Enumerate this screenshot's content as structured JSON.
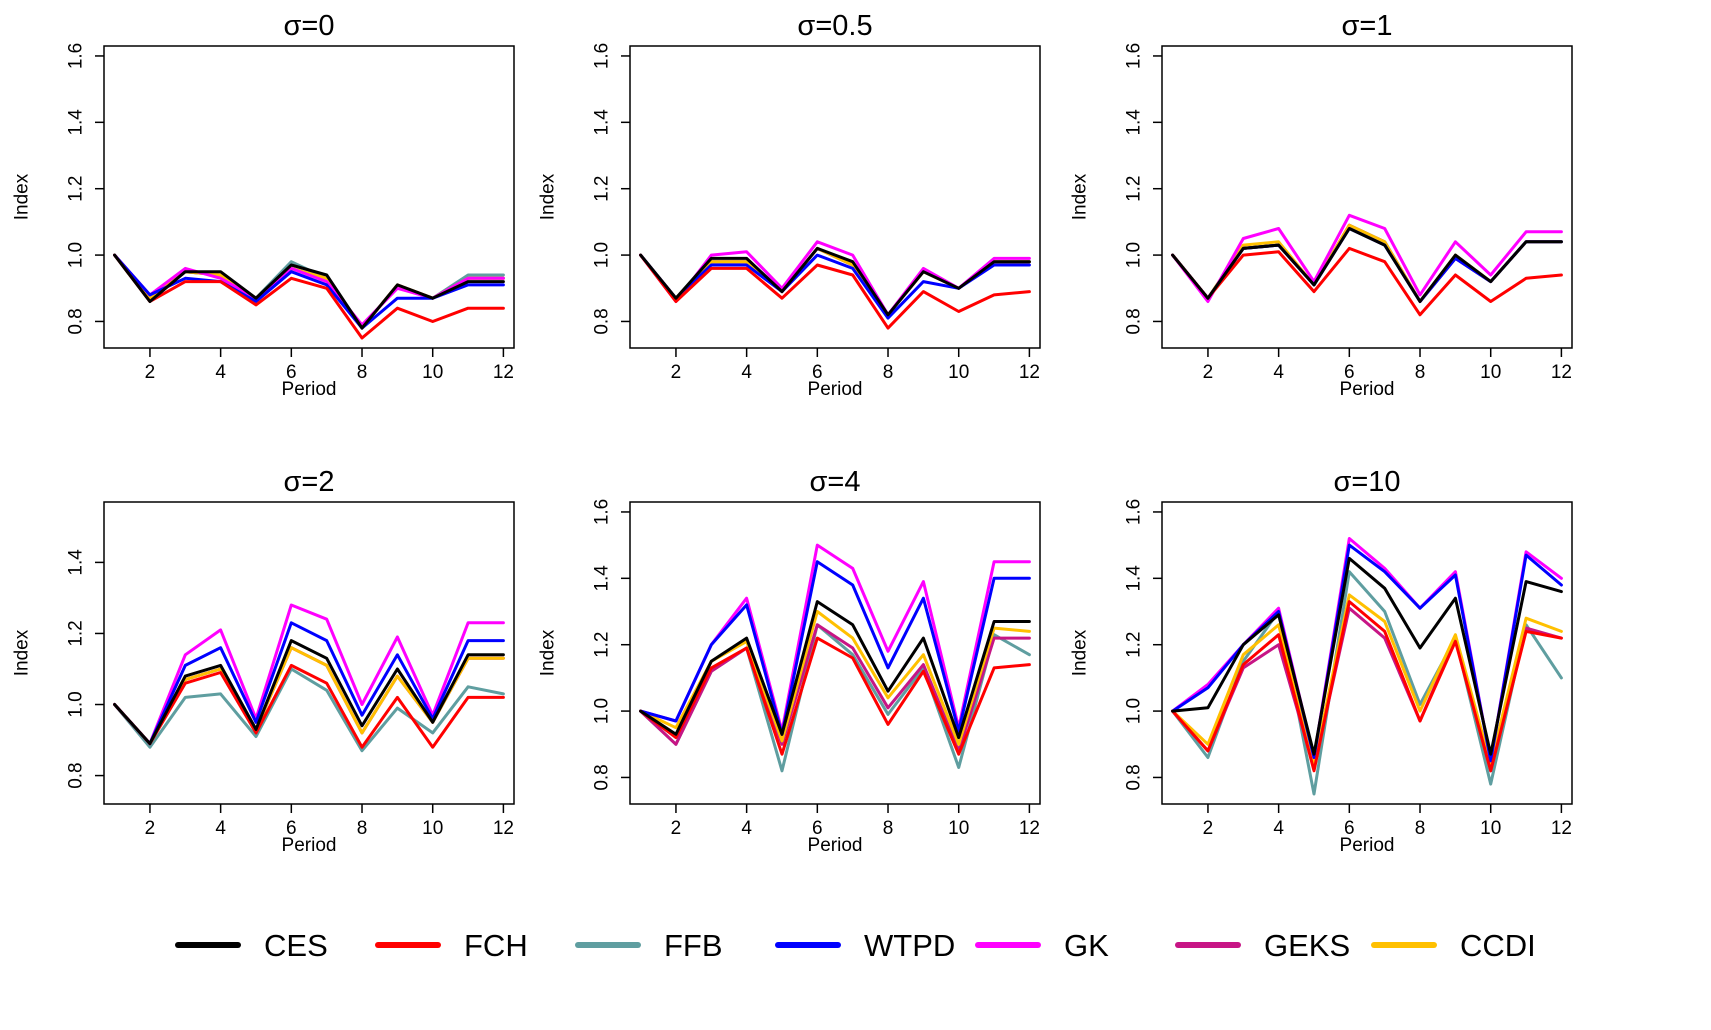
{
  "chart_data": [
    {
      "type": "line",
      "title": "σ=0",
      "xlabel": "Period",
      "ylabel": "Index",
      "x": [
        1,
        2,
        3,
        4,
        5,
        6,
        7,
        8,
        9,
        10,
        11,
        12
      ],
      "yticks": [
        0.8,
        1.0,
        1.2,
        1.4,
        1.6
      ],
      "ytick_labels": [
        "0.8",
        "1.0",
        "1.2",
        "1.4",
        "1.6"
      ],
      "xticks": [
        2,
        4,
        6,
        8,
        10,
        12
      ],
      "xtick_labels": [
        "2",
        "4",
        "6",
        "8",
        "10",
        "12"
      ],
      "xlim": [
        0.7,
        12.3
      ],
      "ylim": [
        0.72,
        1.63
      ],
      "grid": false,
      "series": [
        {
          "name": "FFB",
          "values": [
            1.0,
            0.87,
            0.95,
            0.94,
            0.87,
            0.98,
            0.93,
            0.78,
            0.91,
            0.87,
            0.94,
            0.94
          ]
        },
        {
          "name": "GEKS",
          "values": [
            1.0,
            0.87,
            0.95,
            0.94,
            0.87,
            0.96,
            0.93,
            0.78,
            0.91,
            0.87,
            0.93,
            0.93
          ]
        },
        {
          "name": "CCDI",
          "values": [
            1.0,
            0.87,
            0.95,
            0.94,
            0.87,
            0.96,
            0.93,
            0.78,
            0.91,
            0.87,
            0.93,
            0.93
          ]
        },
        {
          "name": "GK",
          "values": [
            1.0,
            0.88,
            0.96,
            0.93,
            0.87,
            0.96,
            0.92,
            0.79,
            0.9,
            0.87,
            0.93,
            0.93
          ]
        },
        {
          "name": "WTPD",
          "values": [
            1.0,
            0.88,
            0.93,
            0.92,
            0.86,
            0.95,
            0.91,
            0.78,
            0.87,
            0.87,
            0.91,
            0.91
          ]
        },
        {
          "name": "FCH",
          "values": [
            1.0,
            0.86,
            0.92,
            0.92,
            0.85,
            0.93,
            0.9,
            0.75,
            0.84,
            0.8,
            0.84,
            0.84
          ]
        },
        {
          "name": "CES",
          "values": [
            1.0,
            0.86,
            0.95,
            0.95,
            0.87,
            0.97,
            0.94,
            0.78,
            0.91,
            0.87,
            0.92,
            0.92
          ]
        }
      ]
    },
    {
      "type": "line",
      "title": "σ=0.5",
      "xlabel": "Period",
      "ylabel": "Index",
      "x": [
        1,
        2,
        3,
        4,
        5,
        6,
        7,
        8,
        9,
        10,
        11,
        12
      ],
      "yticks": [
        0.8,
        1.0,
        1.2,
        1.4,
        1.6
      ],
      "ytick_labels": [
        "0.8",
        "1.0",
        "1.2",
        "1.4",
        "1.6"
      ],
      "xticks": [
        2,
        4,
        6,
        8,
        10,
        12
      ],
      "xtick_labels": [
        "2",
        "4",
        "6",
        "8",
        "10",
        "12"
      ],
      "xlim": [
        0.7,
        12.3
      ],
      "ylim": [
        0.72,
        1.63
      ],
      "grid": false,
      "series": [
        {
          "name": "FFB",
          "values": [
            1.0,
            0.87,
            0.98,
            0.98,
            0.89,
            1.02,
            0.97,
            0.82,
            0.95,
            0.9,
            0.98,
            0.98
          ]
        },
        {
          "name": "GEKS",
          "values": [
            1.0,
            0.87,
            0.98,
            0.98,
            0.89,
            1.02,
            0.97,
            0.82,
            0.95,
            0.9,
            0.98,
            0.98
          ]
        },
        {
          "name": "CCDI",
          "values": [
            1.0,
            0.87,
            0.98,
            0.98,
            0.89,
            1.02,
            0.97,
            0.82,
            0.95,
            0.9,
            0.98,
            0.98
          ]
        },
        {
          "name": "GK",
          "values": [
            1.0,
            0.86,
            1.0,
            1.01,
            0.9,
            1.04,
            1.0,
            0.82,
            0.96,
            0.9,
            0.99,
            0.99
          ]
        },
        {
          "name": "WTPD",
          "values": [
            1.0,
            0.87,
            0.97,
            0.97,
            0.89,
            1.0,
            0.96,
            0.81,
            0.92,
            0.9,
            0.97,
            0.97
          ]
        },
        {
          "name": "FCH",
          "values": [
            1.0,
            0.86,
            0.96,
            0.96,
            0.87,
            0.97,
            0.94,
            0.78,
            0.89,
            0.83,
            0.88,
            0.89
          ]
        },
        {
          "name": "CES",
          "values": [
            1.0,
            0.87,
            0.99,
            0.99,
            0.89,
            1.02,
            0.98,
            0.82,
            0.95,
            0.9,
            0.98,
            0.98
          ]
        }
      ]
    },
    {
      "type": "line",
      "title": "σ=1",
      "xlabel": "Period",
      "ylabel": "Index",
      "x": [
        1,
        2,
        3,
        4,
        5,
        6,
        7,
        8,
        9,
        10,
        11,
        12
      ],
      "yticks": [
        0.8,
        1.0,
        1.2,
        1.4,
        1.6
      ],
      "ytick_labels": [
        "0.8",
        "1.0",
        "1.2",
        "1.4",
        "1.6"
      ],
      "xticks": [
        2,
        4,
        6,
        8,
        10,
        12
      ],
      "xtick_labels": [
        "2",
        "4",
        "6",
        "8",
        "10",
        "12"
      ],
      "xlim": [
        0.7,
        12.3
      ],
      "ylim": [
        0.72,
        1.63
      ],
      "grid": false,
      "series": [
        {
          "name": "FFB",
          "values": [
            1.0,
            0.87,
            1.02,
            1.03,
            0.91,
            1.09,
            1.04,
            0.86,
            0.99,
            0.92,
            1.04,
            1.04
          ]
        },
        {
          "name": "GEKS",
          "values": [
            1.0,
            0.87,
            1.02,
            1.03,
            0.91,
            1.09,
            1.04,
            0.86,
            0.99,
            0.92,
            1.04,
            1.04
          ]
        },
        {
          "name": "CCDI",
          "values": [
            1.0,
            0.87,
            1.03,
            1.04,
            0.91,
            1.09,
            1.04,
            0.86,
            1.0,
            0.92,
            1.04,
            1.04
          ]
        },
        {
          "name": "GK",
          "values": [
            1.0,
            0.86,
            1.05,
            1.08,
            0.92,
            1.12,
            1.08,
            0.88,
            1.04,
            0.94,
            1.07,
            1.07
          ]
        },
        {
          "name": "WTPD",
          "values": [
            1.0,
            0.87,
            1.02,
            1.03,
            0.91,
            1.08,
            1.03,
            0.86,
            0.99,
            0.92,
            1.04,
            1.04
          ]
        },
        {
          "name": "FCH",
          "values": [
            1.0,
            0.87,
            1.0,
            1.01,
            0.89,
            1.02,
            0.98,
            0.82,
            0.94,
            0.86,
            0.93,
            0.94
          ]
        },
        {
          "name": "CES",
          "values": [
            1.0,
            0.87,
            1.02,
            1.03,
            0.91,
            1.08,
            1.03,
            0.86,
            1.0,
            0.92,
            1.04,
            1.04
          ]
        }
      ]
    },
    {
      "type": "line",
      "title": "σ=2",
      "xlabel": "Period",
      "ylabel": "Index",
      "x": [
        1,
        2,
        3,
        4,
        5,
        6,
        7,
        8,
        9,
        10,
        11,
        12
      ],
      "yticks": [
        0.8,
        1.0,
        1.2,
        1.4
      ],
      "ytick_labels": [
        "0.8",
        "1.0",
        "1.2",
        "1.4"
      ],
      "xticks": [
        2,
        4,
        6,
        8,
        10,
        12
      ],
      "xtick_labels": [
        "2",
        "4",
        "6",
        "8",
        "10",
        "12"
      ],
      "xlim": [
        0.7,
        12.3
      ],
      "ylim": [
        0.72,
        1.57
      ],
      "grid": false,
      "series": [
        {
          "name": "FFB",
          "values": [
            1.0,
            0.88,
            1.02,
            1.03,
            0.91,
            1.1,
            1.04,
            0.87,
            0.99,
            0.92,
            1.05,
            1.03
          ]
        },
        {
          "name": "GEKS",
          "values": [
            1.0,
            0.89,
            1.07,
            1.1,
            0.93,
            1.16,
            1.11,
            0.92,
            1.08,
            0.95,
            1.13,
            1.13
          ]
        },
        {
          "name": "CCDI",
          "values": [
            1.0,
            0.89,
            1.07,
            1.1,
            0.93,
            1.16,
            1.11,
            0.92,
            1.08,
            0.95,
            1.13,
            1.13
          ]
        },
        {
          "name": "GK",
          "values": [
            1.0,
            0.89,
            1.14,
            1.21,
            0.96,
            1.28,
            1.24,
            1.0,
            1.19,
            0.97,
            1.23,
            1.23
          ]
        },
        {
          "name": "WTPD",
          "values": [
            1.0,
            0.89,
            1.11,
            1.16,
            0.95,
            1.23,
            1.18,
            0.97,
            1.14,
            0.96,
            1.18,
            1.18
          ]
        },
        {
          "name": "FCH",
          "values": [
            1.0,
            0.89,
            1.06,
            1.09,
            0.92,
            1.11,
            1.06,
            0.88,
            1.02,
            0.88,
            1.02,
            1.02
          ]
        },
        {
          "name": "CES",
          "values": [
            1.0,
            0.89,
            1.08,
            1.11,
            0.93,
            1.18,
            1.13,
            0.94,
            1.1,
            0.95,
            1.14,
            1.14
          ]
        }
      ]
    },
    {
      "type": "line",
      "title": "σ=4",
      "xlabel": "Period",
      "ylabel": "Index",
      "x": [
        1,
        2,
        3,
        4,
        5,
        6,
        7,
        8,
        9,
        10,
        11,
        12
      ],
      "yticks": [
        0.8,
        1.0,
        1.2,
        1.4,
        1.6
      ],
      "ytick_labels": [
        "0.8",
        "1.0",
        "1.2",
        "1.4",
        "1.6"
      ],
      "xticks": [
        2,
        4,
        6,
        8,
        10,
        12
      ],
      "xtick_labels": [
        "2",
        "4",
        "6",
        "8",
        "10",
        "12"
      ],
      "xlim": [
        0.7,
        12.3
      ],
      "ylim": [
        0.72,
        1.63
      ],
      "grid": false,
      "series": [
        {
          "name": "FFB",
          "values": [
            1.0,
            0.9,
            1.12,
            1.19,
            0.82,
            1.26,
            1.17,
            0.99,
            1.13,
            0.83,
            1.23,
            1.17
          ]
        },
        {
          "name": "GEKS",
          "values": [
            1.0,
            0.9,
            1.12,
            1.19,
            0.9,
            1.26,
            1.19,
            1.01,
            1.14,
            0.88,
            1.22,
            1.22
          ]
        },
        {
          "name": "CCDI",
          "values": [
            1.0,
            0.95,
            1.15,
            1.21,
            0.91,
            1.3,
            1.22,
            1.04,
            1.17,
            0.9,
            1.25,
            1.24
          ]
        },
        {
          "name": "GK",
          "values": [
            1.0,
            0.97,
            1.2,
            1.34,
            0.94,
            1.5,
            1.43,
            1.18,
            1.39,
            0.95,
            1.45,
            1.45
          ]
        },
        {
          "name": "WTPD",
          "values": [
            1.0,
            0.97,
            1.2,
            1.32,
            0.93,
            1.45,
            1.38,
            1.13,
            1.34,
            0.94,
            1.4,
            1.4
          ]
        },
        {
          "name": "FCH",
          "values": [
            1.0,
            0.92,
            1.13,
            1.19,
            0.87,
            1.22,
            1.16,
            0.96,
            1.12,
            0.87,
            1.13,
            1.14
          ]
        },
        {
          "name": "CES",
          "values": [
            1.0,
            0.93,
            1.15,
            1.22,
            0.93,
            1.33,
            1.26,
            1.06,
            1.22,
            0.92,
            1.27,
            1.27
          ]
        }
      ]
    },
    {
      "type": "line",
      "title": "σ=10",
      "xlabel": "Period",
      "ylabel": "Index",
      "x": [
        1,
        2,
        3,
        4,
        5,
        6,
        7,
        8,
        9,
        10,
        11,
        12
      ],
      "yticks": [
        0.8,
        1.0,
        1.2,
        1.4,
        1.6
      ],
      "ytick_labels": [
        "0.8",
        "1.0",
        "1.2",
        "1.4",
        "1.6"
      ],
      "xticks": [
        2,
        4,
        6,
        8,
        10,
        12
      ],
      "xtick_labels": [
        "2",
        "4",
        "6",
        "8",
        "10",
        "12"
      ],
      "xlim": [
        0.7,
        12.3
      ],
      "ylim": [
        0.72,
        1.63
      ],
      "grid": false,
      "series": [
        {
          "name": "FFB",
          "values": [
            1.0,
            0.86,
            1.15,
            1.3,
            0.75,
            1.42,
            1.3,
            1.02,
            1.22,
            0.78,
            1.26,
            1.1
          ]
        },
        {
          "name": "GEKS",
          "values": [
            1.0,
            0.88,
            1.13,
            1.2,
            0.83,
            1.31,
            1.22,
            0.97,
            1.22,
            0.82,
            1.25,
            1.22
          ]
        },
        {
          "name": "CCDI",
          "values": [
            1.0,
            0.9,
            1.17,
            1.26,
            0.84,
            1.35,
            1.27,
            1.0,
            1.23,
            0.84,
            1.28,
            1.24
          ]
        },
        {
          "name": "GK",
          "values": [
            1.0,
            1.08,
            1.2,
            1.31,
            0.86,
            1.52,
            1.43,
            1.31,
            1.42,
            0.85,
            1.48,
            1.4
          ]
        },
        {
          "name": "WTPD",
          "values": [
            1.0,
            1.07,
            1.2,
            1.3,
            0.86,
            1.5,
            1.42,
            1.31,
            1.41,
            0.85,
            1.47,
            1.38
          ]
        },
        {
          "name": "FCH",
          "values": [
            1.0,
            0.88,
            1.14,
            1.23,
            0.82,
            1.33,
            1.24,
            0.97,
            1.21,
            0.82,
            1.24,
            1.22
          ]
        },
        {
          "name": "CES",
          "values": [
            1.0,
            1.01,
            1.2,
            1.29,
            0.87,
            1.46,
            1.37,
            1.19,
            1.34,
            0.87,
            1.39,
            1.36
          ]
        }
      ]
    }
  ],
  "legend": {
    "placement": "bottom",
    "entries": [
      {
        "name": "CES",
        "color": "#000000"
      },
      {
        "name": "FCH",
        "color": "#ff0000"
      },
      {
        "name": "FFB",
        "color": "#5f9ea0"
      },
      {
        "name": "WTPD",
        "color": "#0000ff"
      },
      {
        "name": "GK",
        "color": "#ff00ff"
      },
      {
        "name": "GEKS",
        "color": "#c71585"
      },
      {
        "name": "CCDI",
        "color": "#ffc000"
      }
    ]
  }
}
